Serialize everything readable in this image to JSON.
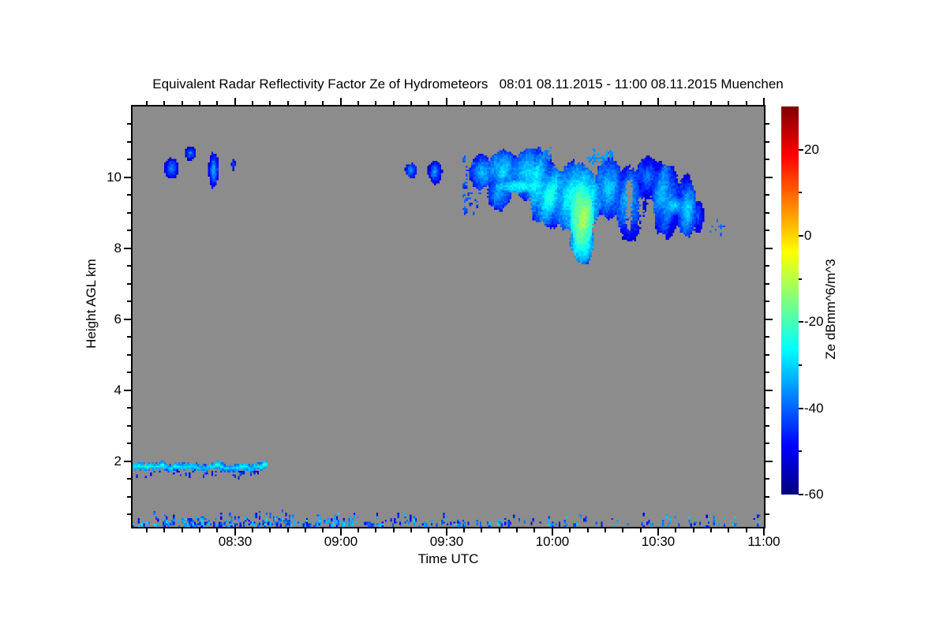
{
  "chart_data": {
    "type": "heatmap",
    "title": "Equivalent Radar Reflectivity Factor Ze of Hydrometeors   08:01 08.11.2015 - 11:00 08.11.2015 Muenchen",
    "xlabel": "Time UTC",
    "ylabel": "Height AGL km",
    "station": "Muenchen",
    "time_span": {
      "start": "08:01 08.11.2015",
      "end": "11:00 08.11.2015"
    },
    "x_axis": {
      "start_minute": 1,
      "end_minute": 180,
      "minor_step_minutes": 5,
      "major_ticks": [
        {
          "minute": 30,
          "label": "08:30"
        },
        {
          "minute": 60,
          "label": "09:00"
        },
        {
          "minute": 90,
          "label": "09:30"
        },
        {
          "minute": 120,
          "label": "10:00"
        },
        {
          "minute": 150,
          "label": "10:30"
        },
        {
          "minute": 180,
          "label": "11:00"
        }
      ]
    },
    "y_axis": {
      "min_km": 0.15,
      "max_km": 12,
      "minor_step_km": 0.5,
      "major_ticks": [
        {
          "km": 2,
          "label": "2"
        },
        {
          "km": 4,
          "label": "4"
        },
        {
          "km": 6,
          "label": "6"
        },
        {
          "km": 8,
          "label": "8"
        },
        {
          "km": 10,
          "label": "10"
        }
      ]
    },
    "colorbar": {
      "label": "Ze dBmm^6/m^3",
      "min": -60,
      "max": 30,
      "minor_step": 10,
      "colormap": "jet",
      "major_ticks": [
        {
          "value": 20,
          "label": "20"
        },
        {
          "value": 0,
          "label": "0"
        },
        {
          "value": -20,
          "label": "-20"
        },
        {
          "value": -40,
          "label": "-40"
        },
        {
          "value": -60,
          "label": "-60"
        }
      ]
    },
    "colors": {
      "page_background": "#ffffff",
      "plot_background": "#8c8c8c",
      "axis": "#000000"
    },
    "noise_seed": 1337,
    "features": [
      {
        "kind": "blob",
        "name": "cirrus-fragment-0812",
        "t": 12,
        "h": 10.25,
        "rt": 2.0,
        "rh": 0.28,
        "v": -36,
        "ve": -50
      },
      {
        "kind": "blob",
        "name": "cirrus-fragment-0817",
        "t": 17.4,
        "h": 10.68,
        "rt": 1.5,
        "rh": 0.18,
        "v": -33,
        "ve": -48
      },
      {
        "kind": "blob",
        "name": "cirrus-streak-0824",
        "t": 24,
        "h": 10.2,
        "rt": 1.3,
        "rh": 0.45,
        "v": -29,
        "ve": -45
      },
      {
        "kind": "blob",
        "name": "cirrus-dash-0830",
        "t": 29.6,
        "h": 10.37,
        "rt": 0.5,
        "rh": 0.16,
        "v": -38,
        "ve": -48
      },
      {
        "kind": "blob",
        "name": "cirrus-speck-0920",
        "t": 80,
        "h": 10.2,
        "rt": 1.7,
        "rh": 0.22,
        "v": -40,
        "ve": -50
      },
      {
        "kind": "blob",
        "name": "cirrus-speck-0927",
        "t": 86.8,
        "h": 10.15,
        "rt": 1.9,
        "rh": 0.33,
        "v": -37,
        "ve": -50
      },
      {
        "kind": "patch",
        "name": "cloud-left-debris",
        "t0": 94.5,
        "t1": 99.5,
        "h0": 9.0,
        "h1": 10.7,
        "n": 50,
        "v": -42,
        "spread": 8
      },
      {
        "kind": "blob",
        "name": "cloud-left-wing-top",
        "t": 100,
        "h": 10.15,
        "rt": 3.5,
        "rh": 0.5,
        "v": -33,
        "ve": -48
      },
      {
        "kind": "blob",
        "name": "cloud-left-top",
        "t": 106,
        "h": 10.2,
        "rt": 4.5,
        "rh": 0.6,
        "v": -30,
        "ve": -46
      },
      {
        "kind": "blob",
        "name": "cloud-left-shelf",
        "t": 105,
        "h": 9.55,
        "rt": 3.5,
        "rh": 0.5,
        "v": -35,
        "ve": -48
      },
      {
        "kind": "blob",
        "name": "cloud-main-upper",
        "t": 114,
        "h": 10.1,
        "rt": 6.0,
        "rh": 0.75,
        "v": -28,
        "ve": -45
      },
      {
        "kind": "blob",
        "name": "cloud-main-mid",
        "t": 119,
        "h": 9.5,
        "rt": 6.0,
        "rh": 0.85,
        "v": -24,
        "ve": -42
      },
      {
        "kind": "blob",
        "name": "cloud-bright-vein",
        "t": 112,
        "h": 9.75,
        "rt": 8.5,
        "rh": 0.18,
        "v": -26,
        "ve": -36
      },
      {
        "kind": "blob",
        "name": "cloud-core-wash",
        "t": 127,
        "h": 9.4,
        "rt": 7.0,
        "rh": 0.95,
        "v": -19,
        "ve": -38
      },
      {
        "kind": "blob",
        "name": "cloud-core-bright",
        "t": 128.5,
        "h": 8.9,
        "rt": 3.2,
        "rh": 0.85,
        "v": -12,
        "ve": -24
      },
      {
        "kind": "blob",
        "name": "cloud-fall-tongue",
        "t": 128.5,
        "h": 8.2,
        "rt": 3.4,
        "rh": 0.6,
        "v": -20,
        "ve": -36
      },
      {
        "kind": "blob",
        "name": "cloud-tongue-tip",
        "t": 129,
        "h": 7.9,
        "rt": 2.4,
        "rh": 0.35,
        "v": -26,
        "ve": -42
      },
      {
        "kind": "patch",
        "name": "cloud-top-debris-1",
        "t0": 116,
        "t1": 120,
        "h0": 10.55,
        "h1": 10.85,
        "n": 25,
        "v": -38,
        "spread": 6
      },
      {
        "kind": "patch",
        "name": "cloud-top-debris-2",
        "t0": 130,
        "t1": 137,
        "h0": 10.4,
        "h1": 10.8,
        "n": 35,
        "v": -36,
        "spread": 6
      },
      {
        "kind": "blob",
        "name": "cloud-right-mid",
        "t": 136,
        "h": 9.7,
        "rt": 4.5,
        "rh": 0.85,
        "v": -30,
        "ve": -46
      },
      {
        "kind": "blob",
        "name": "cloud-right-1",
        "t": 142,
        "h": 9.3,
        "rt": 4.5,
        "rh": 1.0,
        "v": -32,
        "ve": -47
      },
      {
        "kind": "blob",
        "name": "cloud-right-top",
        "t": 147,
        "h": 10.0,
        "rt": 3.5,
        "rh": 0.55,
        "v": -35,
        "ve": -48
      },
      {
        "kind": "blob",
        "name": "cloud-right-2",
        "t": 152,
        "h": 9.4,
        "rt": 4.0,
        "rh": 1.05,
        "v": -32,
        "ve": -47
      },
      {
        "kind": "blob",
        "name": "cloud-right-vein",
        "t": 155,
        "h": 9.2,
        "rt": 4.0,
        "rh": 0.25,
        "v": -28,
        "ve": -40
      },
      {
        "kind": "blob",
        "name": "cloud-right-lobe",
        "t": 158,
        "h": 9.15,
        "rt": 3.0,
        "rh": 0.85,
        "v": -30,
        "ve": -46
      },
      {
        "kind": "blob",
        "name": "cloud-right-edge",
        "t": 161.5,
        "h": 8.9,
        "rt": 1.5,
        "rh": 0.45,
        "v": -40,
        "ve": -50
      },
      {
        "kind": "gap",
        "name": "cloud-gap-1",
        "t": 141.8,
        "w": 0.9,
        "h0": 8.5,
        "h1": 9.9
      },
      {
        "kind": "gap",
        "name": "cloud-gap-2",
        "t": 145.3,
        "w": 0.7,
        "h0": 8.4,
        "h1": 9.4
      },
      {
        "kind": "patch",
        "name": "post-cloud-specks",
        "t0": 164.8,
        "t1": 168.2,
        "h0": 8.4,
        "h1": 8.9,
        "n": 10,
        "v": -40,
        "spread": 6
      },
      {
        "kind": "layer",
        "name": "boundary-layer-drizzle",
        "t0": 1,
        "t1": 39,
        "h": 1.86,
        "th": 0.13,
        "v": -27
      },
      {
        "kind": "patch",
        "name": "drizzle-underside-specks",
        "t0": 2,
        "t1": 38,
        "h0": 1.56,
        "h1": 1.74,
        "n": 35,
        "v": -46,
        "spread": 7
      },
      {
        "kind": "clutter",
        "name": "ground-clutter-1",
        "t0": 1,
        "t1": 20,
        "h0": 0.18,
        "h1": 0.55,
        "n": 70
      },
      {
        "kind": "clutter",
        "name": "ground-clutter-2",
        "t0": 20,
        "t1": 45,
        "h0": 0.18,
        "h1": 0.65,
        "n": 110
      },
      {
        "kind": "clutter",
        "name": "ground-clutter-3",
        "t0": 45,
        "t1": 70,
        "h0": 0.18,
        "h1": 0.6,
        "n": 90
      },
      {
        "kind": "clutter",
        "name": "ground-clutter-4",
        "t0": 70,
        "t1": 95,
        "h0": 0.18,
        "h1": 0.55,
        "n": 60
      },
      {
        "kind": "clutter",
        "name": "ground-clutter-5",
        "t0": 95,
        "t1": 125,
        "h0": 0.18,
        "h1": 0.5,
        "n": 40
      },
      {
        "kind": "clutter",
        "name": "ground-clutter-6",
        "t0": 125,
        "t1": 155,
        "h0": 0.18,
        "h1": 0.5,
        "n": 28
      },
      {
        "kind": "clutter",
        "name": "ground-clutter-7",
        "t0": 155,
        "t1": 179,
        "h0": 0.18,
        "h1": 0.6,
        "n": 30
      }
    ]
  }
}
